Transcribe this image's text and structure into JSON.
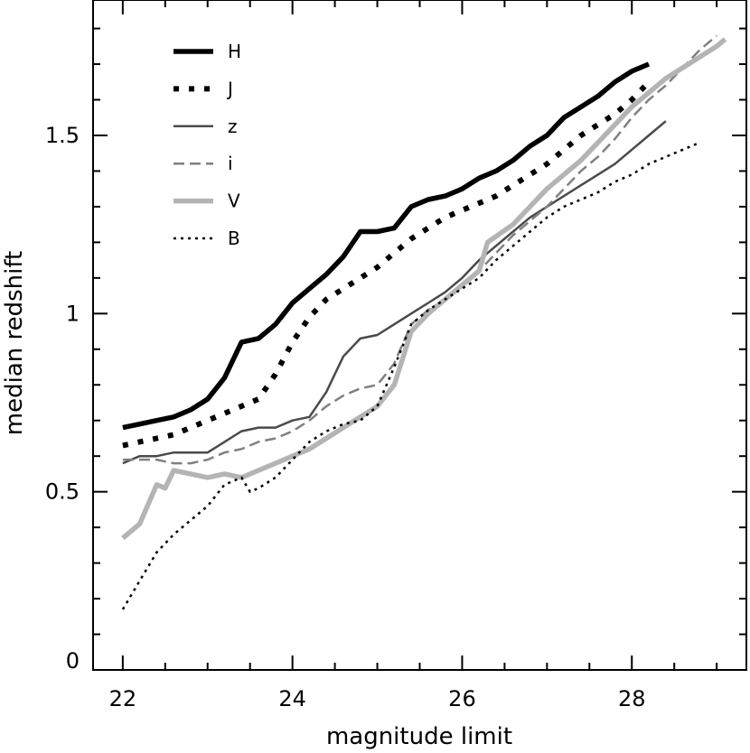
{
  "chart_data": {
    "type": "line",
    "title": "",
    "xlabel": "magnitude limit",
    "ylabel": "median redshift",
    "xlim": [
      21.65,
      29.35
    ],
    "ylim": [
      0,
      1.88
    ],
    "x_ticks": [
      22,
      24,
      26,
      28
    ],
    "x_tick_labels": [
      "22",
      "24",
      "26",
      "28"
    ],
    "y_ticks": [
      0,
      0.5,
      1,
      1.5
    ],
    "y_tick_labels": [
      "0",
      "0.5",
      "1",
      "1.5"
    ],
    "grid": false,
    "legend_position": "top-left",
    "series": [
      {
        "name": "H",
        "color": "#000000",
        "style": "solid-thick",
        "x": [
          22.0,
          22.2,
          22.4,
          22.6,
          22.8,
          23.0,
          23.2,
          23.4,
          23.6,
          23.8,
          24.0,
          24.2,
          24.4,
          24.6,
          24.8,
          25.0,
          25.2,
          25.4,
          25.6,
          25.8,
          26.0,
          26.2,
          26.4,
          26.6,
          26.8,
          27.0,
          27.2,
          27.4,
          27.6,
          27.8,
          28.0,
          28.2
        ],
        "values": [
          0.68,
          0.69,
          0.7,
          0.71,
          0.73,
          0.76,
          0.82,
          0.92,
          0.93,
          0.97,
          1.03,
          1.07,
          1.11,
          1.16,
          1.23,
          1.23,
          1.24,
          1.3,
          1.32,
          1.33,
          1.35,
          1.38,
          1.4,
          1.43,
          1.47,
          1.5,
          1.55,
          1.58,
          1.61,
          1.65,
          1.68,
          1.7
        ]
      },
      {
        "name": "J",
        "color": "#000000",
        "style": "dotted-thick",
        "x": [
          22.0,
          22.2,
          22.4,
          22.6,
          22.8,
          23.0,
          23.2,
          23.4,
          23.6,
          23.8,
          24.0,
          24.2,
          24.4,
          24.6,
          24.8,
          25.0,
          25.2,
          25.4,
          25.6,
          25.8,
          26.0,
          26.2,
          26.4,
          26.6,
          26.8,
          27.0,
          27.2,
          27.4,
          27.6,
          27.8,
          28.0,
          28.2
        ],
        "values": [
          0.63,
          0.64,
          0.65,
          0.66,
          0.68,
          0.7,
          0.72,
          0.74,
          0.76,
          0.83,
          0.92,
          0.99,
          1.04,
          1.07,
          1.1,
          1.13,
          1.17,
          1.21,
          1.24,
          1.27,
          1.29,
          1.31,
          1.33,
          1.36,
          1.39,
          1.42,
          1.46,
          1.5,
          1.53,
          1.56,
          1.6,
          1.65
        ]
      },
      {
        "name": "z",
        "color": "#4a4a4a",
        "style": "solid-thin",
        "x": [
          22.0,
          22.2,
          22.4,
          22.6,
          22.8,
          23.0,
          23.2,
          23.4,
          23.6,
          23.8,
          24.0,
          24.2,
          24.4,
          24.6,
          24.8,
          25.0,
          25.2,
          25.4,
          25.6,
          25.8,
          26.0,
          26.2,
          26.4,
          26.6,
          26.8,
          27.0,
          27.2,
          27.4,
          27.6,
          27.8,
          28.0,
          28.2,
          28.4
        ],
        "values": [
          0.58,
          0.6,
          0.6,
          0.61,
          0.61,
          0.61,
          0.64,
          0.67,
          0.68,
          0.68,
          0.7,
          0.71,
          0.78,
          0.88,
          0.93,
          0.94,
          0.97,
          1.0,
          1.03,
          1.06,
          1.1,
          1.15,
          1.19,
          1.23,
          1.27,
          1.3,
          1.33,
          1.36,
          1.39,
          1.42,
          1.46,
          1.5,
          1.54
        ]
      },
      {
        "name": "i",
        "color": "#808080",
        "style": "dashed",
        "x": [
          22.0,
          22.2,
          22.4,
          22.6,
          22.8,
          23.0,
          23.2,
          23.4,
          23.6,
          23.8,
          24.0,
          24.2,
          24.4,
          24.6,
          24.8,
          25.0,
          25.2,
          25.4,
          25.6,
          25.8,
          26.0,
          26.2,
          26.4,
          26.6,
          26.8,
          27.0,
          27.2,
          27.4,
          27.6,
          27.8,
          28.0,
          28.2,
          28.4,
          28.6,
          28.8,
          29.0
        ],
        "values": [
          0.59,
          0.59,
          0.59,
          0.58,
          0.58,
          0.59,
          0.61,
          0.62,
          0.64,
          0.65,
          0.67,
          0.7,
          0.74,
          0.77,
          0.79,
          0.8,
          0.86,
          0.97,
          1.01,
          1.04,
          1.08,
          1.12,
          1.17,
          1.22,
          1.26,
          1.3,
          1.35,
          1.4,
          1.44,
          1.49,
          1.55,
          1.6,
          1.64,
          1.69,
          1.74,
          1.78
        ]
      },
      {
        "name": "V",
        "color": "#b4b4b4",
        "style": "solid-thick",
        "x": [
          22.0,
          22.2,
          22.4,
          22.5,
          22.6,
          22.8,
          23.0,
          23.2,
          23.4,
          23.6,
          23.8,
          24.0,
          24.2,
          24.4,
          24.6,
          24.8,
          25.0,
          25.2,
          25.4,
          25.6,
          25.8,
          26.0,
          26.2,
          26.3,
          26.6,
          26.8,
          27.0,
          27.2,
          27.4,
          27.6,
          27.8,
          28.0,
          28.2,
          28.4,
          28.6,
          28.8,
          29.0,
          29.1
        ],
        "values": [
          0.37,
          0.41,
          0.52,
          0.51,
          0.56,
          0.55,
          0.54,
          0.55,
          0.54,
          0.56,
          0.58,
          0.6,
          0.62,
          0.65,
          0.68,
          0.71,
          0.74,
          0.8,
          0.95,
          1.0,
          1.04,
          1.08,
          1.12,
          1.2,
          1.25,
          1.3,
          1.35,
          1.39,
          1.43,
          1.48,
          1.53,
          1.58,
          1.62,
          1.66,
          1.69,
          1.72,
          1.75,
          1.77
        ]
      },
      {
        "name": "B",
        "color": "#000000",
        "style": "dotted-thin",
        "x": [
          22.0,
          22.2,
          22.4,
          22.6,
          22.8,
          23.0,
          23.2,
          23.4,
          23.5,
          23.6,
          23.8,
          24.0,
          24.2,
          24.4,
          24.6,
          24.8,
          25.0,
          25.2,
          25.4,
          25.6,
          25.8,
          26.0,
          26.2,
          26.4,
          26.6,
          26.8,
          27.0,
          27.2,
          27.4,
          27.6,
          27.8,
          28.0,
          28.2,
          28.4,
          28.6,
          28.8
        ],
        "values": [
          0.17,
          0.25,
          0.33,
          0.38,
          0.42,
          0.46,
          0.52,
          0.54,
          0.5,
          0.51,
          0.54,
          0.59,
          0.64,
          0.67,
          0.69,
          0.7,
          0.74,
          0.85,
          0.97,
          1.01,
          1.04,
          1.07,
          1.1,
          1.15,
          1.19,
          1.23,
          1.27,
          1.3,
          1.32,
          1.34,
          1.37,
          1.39,
          1.42,
          1.44,
          1.46,
          1.48
        ]
      }
    ]
  }
}
